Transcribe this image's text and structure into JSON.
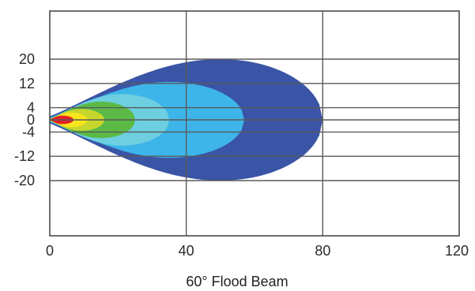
{
  "chart_data": {
    "type": "area",
    "title": "60° Flood Beam",
    "xlabel": "",
    "ylabel": "",
    "xlim": [
      0,
      120
    ],
    "ylim": [
      -36,
      36
    ],
    "x_ticks": [
      0,
      40,
      80,
      120
    ],
    "y_ticks": [
      20,
      12,
      4,
      0,
      -4,
      -12,
      -20
    ],
    "x_tick_labels": [
      "0",
      "40",
      "80",
      "120"
    ],
    "y_tick_labels": [
      "20",
      "12",
      "4",
      "0",
      "-4",
      "-12",
      "-20"
    ],
    "grid": true,
    "legend": "none",
    "series": [
      {
        "reach": 80,
        "max_half_width": 20,
        "peak_x": 50,
        "color": "#3a55a6"
      },
      {
        "reach": 57,
        "max_half_width": 12.5,
        "peak_x": 35,
        "color": "#3db5e8"
      },
      {
        "reach": 35,
        "max_half_width": 8.5,
        "peak_x": 21,
        "color": "#6dcfe0"
      },
      {
        "reach": 25,
        "max_half_width": 6,
        "peak_x": 15,
        "color": "#5bba45"
      },
      {
        "reach": 16,
        "max_half_width": 3.6,
        "peak_x": 9,
        "color": "#c6d62c"
      },
      {
        "reach": 11,
        "max_half_width": 2.4,
        "peak_x": 6,
        "color": "#f9e51b"
      },
      {
        "reach": 7,
        "max_half_width": 1.4,
        "peak_x": 3.5,
        "color": "#e32027"
      }
    ]
  }
}
